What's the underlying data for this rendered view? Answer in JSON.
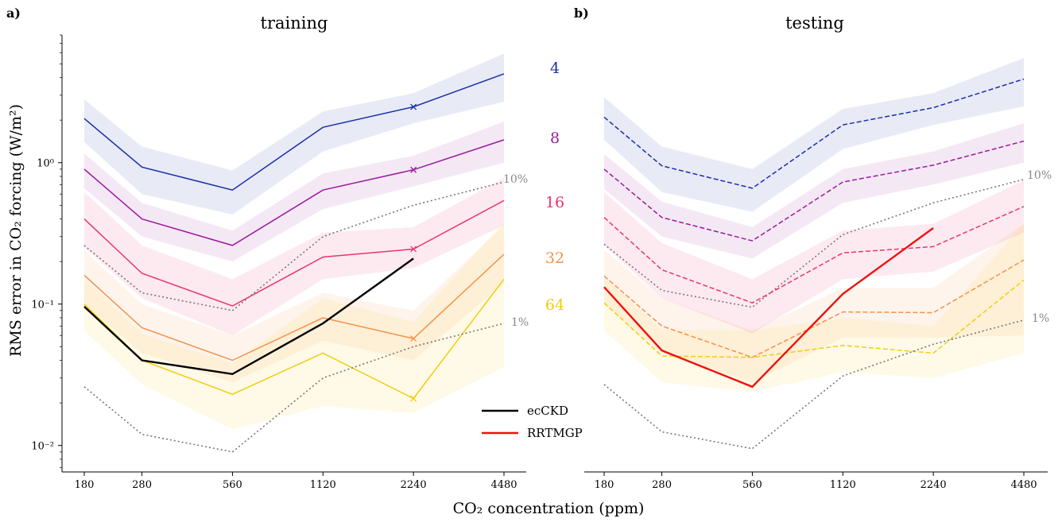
{
  "panels": [
    {
      "letter": "a)",
      "title": "training"
    },
    {
      "letter": "b)",
      "title": "testing"
    }
  ],
  "ylabel": "RMS error in CO₂ forcing (W/m²)",
  "xlabel": "CO₂ concentration (ppm)",
  "x_ticks": [
    "180",
    "280",
    "560",
    "1120",
    "2240",
    "4480"
  ],
  "y_ticks": [
    "10⁻²",
    "10⁻¹",
    "10⁰"
  ],
  "legend": [
    {
      "label": "ecCKD",
      "color": "#000000"
    },
    {
      "label": "RRTMGP",
      "color": "#ee1111"
    }
  ],
  "band_labels": [
    {
      "text": "4",
      "color": "#1a30a8"
    },
    {
      "text": "8",
      "color": "#9a1a9e"
    },
    {
      "text": "16",
      "color": "#e8356e"
    },
    {
      "text": "32",
      "color": "#f59048"
    },
    {
      "text": "64",
      "color": "#f2cc12"
    }
  ],
  "ref_labels": [
    "10%",
    "1%"
  ],
  "chart_data": [
    {
      "type": "line",
      "title": "training",
      "xlabel": "CO₂ concentration (ppm)",
      "ylabel": "RMS error in CO₂ forcing (W/m²)",
      "y_scale": "log",
      "x_scale": "log2",
      "x": [
        180,
        280,
        560,
        1120,
        2240,
        4480
      ],
      "ylim": [
        0.0065,
        8.0
      ],
      "series": [
        {
          "name": "4",
          "color": "#1a30a8",
          "dash": "solid",
          "values": [
            2.05,
            0.93,
            0.64,
            1.78,
            2.48,
            4.25
          ],
          "band_low": [
            1.4,
            0.6,
            0.43,
            1.2,
            1.9,
            2.7
          ],
          "band_high": [
            2.8,
            1.3,
            0.88,
            2.3,
            3.1,
            5.9
          ],
          "band_color": "#1a30a8",
          "marker_index": 4
        },
        {
          "name": "8",
          "color": "#9a1a9e",
          "dash": "solid",
          "values": [
            0.9,
            0.4,
            0.26,
            0.64,
            0.89,
            1.45
          ],
          "band_low": [
            0.66,
            0.3,
            0.2,
            0.47,
            0.68,
            1.0
          ],
          "band_high": [
            1.16,
            0.52,
            0.33,
            0.84,
            1.12,
            1.95
          ],
          "band_color": "#9a1a9e",
          "marker_index": 4
        },
        {
          "name": "16",
          "color": "#e8356e",
          "dash": "solid",
          "values": [
            0.4,
            0.165,
            0.097,
            0.215,
            0.245,
            0.54
          ],
          "band_low": [
            0.25,
            0.11,
            0.06,
            0.15,
            0.18,
            0.36
          ],
          "band_high": [
            0.62,
            0.26,
            0.15,
            0.32,
            0.35,
            0.78
          ],
          "band_color": "#e8356e",
          "marker_index": 4
        },
        {
          "name": "32",
          "color": "#f59048",
          "dash": "solid",
          "values": [
            0.16,
            0.068,
            0.04,
            0.08,
            0.057,
            0.225
          ],
          "band_low": [
            0.1,
            0.045,
            0.028,
            0.055,
            0.04,
            0.14
          ],
          "band_high": [
            0.24,
            0.1,
            0.06,
            0.12,
            0.09,
            0.36
          ],
          "band_color": "#f59048",
          "marker_index": 4
        },
        {
          "name": "64",
          "color": "#f2cc12",
          "dash": "solid",
          "values": [
            0.1,
            0.04,
            0.023,
            0.045,
            0.0215,
            0.15
          ],
          "band_low": [
            0.065,
            0.027,
            0.013,
            0.019,
            0.017,
            0.036
          ],
          "band_high": [
            0.15,
            0.062,
            0.038,
            0.11,
            0.075,
            0.38
          ],
          "band_color": "#f2cc12",
          "marker_index": 4
        },
        {
          "name": "ecCKD",
          "color": "#000000",
          "dash": "solid",
          "width": 2.4,
          "x": [
            180,
            280,
            560,
            1120,
            2240
          ],
          "values": [
            0.096,
            0.04,
            0.032,
            0.073,
            0.21
          ]
        },
        {
          "name": "10%",
          "color": "#777777",
          "dash": "dotted",
          "values": [
            0.26,
            0.12,
            0.09,
            0.3,
            0.5,
            0.73
          ]
        },
        {
          "name": "1%",
          "color": "#777777",
          "dash": "dotted",
          "values": [
            0.026,
            0.012,
            0.009,
            0.03,
            0.05,
            0.073
          ]
        }
      ]
    },
    {
      "type": "line",
      "title": "testing",
      "xlabel": "CO₂ concentration (ppm)",
      "y_scale": "log",
      "x_scale": "log2",
      "x": [
        180,
        280,
        560,
        1120,
        2240,
        4480
      ],
      "ylim": [
        0.0065,
        8.0
      ],
      "series": [
        {
          "name": "4",
          "color": "#1a30a8",
          "dash": "dashed",
          "values": [
            2.1,
            0.95,
            0.66,
            1.85,
            2.45,
            3.9
          ],
          "band_low": [
            1.45,
            0.62,
            0.45,
            1.25,
            1.85,
            2.5
          ],
          "band_high": [
            2.9,
            1.3,
            0.9,
            2.4,
            3.1,
            5.5
          ],
          "band_color": "#1a30a8"
        },
        {
          "name": "8",
          "color": "#9a1a9e",
          "dash": "dashed",
          "values": [
            0.9,
            0.41,
            0.28,
            0.73,
            0.96,
            1.42
          ],
          "band_low": [
            0.65,
            0.3,
            0.21,
            0.52,
            0.7,
            1.0
          ],
          "band_high": [
            1.15,
            0.53,
            0.35,
            0.9,
            1.2,
            1.9
          ],
          "band_color": "#9a1a9e"
        },
        {
          "name": "16",
          "color": "#e8356e",
          "dash": "dashed",
          "values": [
            0.41,
            0.175,
            0.102,
            0.23,
            0.255,
            0.49
          ],
          "band_low": [
            0.26,
            0.11,
            0.062,
            0.15,
            0.17,
            0.32
          ],
          "band_high": [
            0.62,
            0.27,
            0.15,
            0.33,
            0.37,
            0.75
          ],
          "band_color": "#e8356e"
        },
        {
          "name": "32",
          "color": "#f59048",
          "dash": "dashed",
          "values": [
            0.158,
            0.07,
            0.042,
            0.088,
            0.087,
            0.205
          ],
          "band_low": [
            0.1,
            0.045,
            0.028,
            0.058,
            0.058,
            0.06
          ],
          "band_high": [
            0.24,
            0.11,
            0.065,
            0.13,
            0.13,
            0.37
          ],
          "band_color": "#f59048"
        },
        {
          "name": "64",
          "color": "#f2cc12",
          "dash": "dashed",
          "values": [
            0.102,
            0.043,
            0.042,
            0.051,
            0.045,
            0.148
          ],
          "band_low": [
            0.065,
            0.028,
            0.024,
            0.033,
            0.03,
            0.045
          ],
          "band_high": [
            0.155,
            0.066,
            0.065,
            0.08,
            0.07,
            0.37
          ],
          "band_color": "#f2cc12"
        },
        {
          "name": "RRTMGP",
          "color": "#ee1111",
          "dash": "solid",
          "width": 2.4,
          "x": [
            180,
            280,
            560,
            1120,
            2240
          ],
          "values": [
            0.132,
            0.047,
            0.026,
            0.118,
            0.345
          ]
        },
        {
          "name": "10%",
          "color": "#777777",
          "dash": "dotted",
          "values": [
            0.265,
            0.125,
            0.095,
            0.31,
            0.52,
            0.76
          ]
        },
        {
          "name": "1%",
          "color": "#777777",
          "dash": "dotted",
          "values": [
            0.027,
            0.0125,
            0.0095,
            0.031,
            0.052,
            0.077
          ]
        }
      ]
    }
  ]
}
